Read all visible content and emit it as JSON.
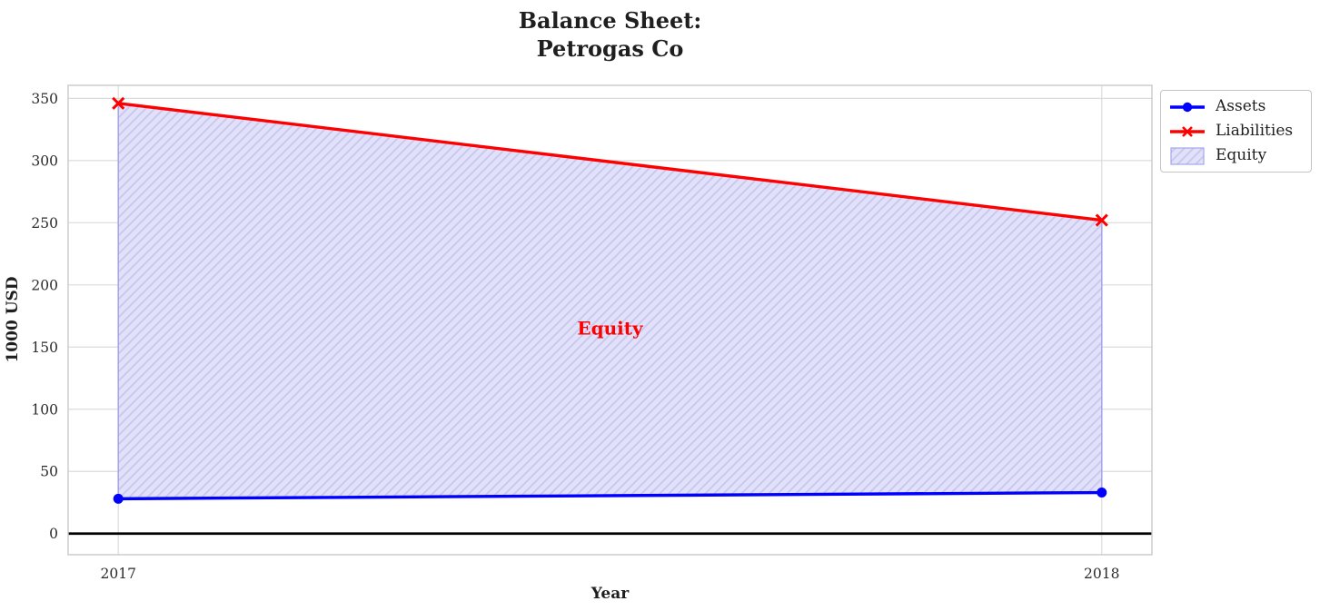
{
  "chart_data": {
    "type": "line",
    "title": "Balance Sheet:\nPetrogas Co",
    "xlabel": "Year",
    "ylabel": "1000 USD",
    "x": [
      2017,
      2018
    ],
    "series": [
      {
        "name": "Assets",
        "values": [
          28,
          33
        ],
        "color": "#0000ff",
        "marker": "circle"
      },
      {
        "name": "Liabilities",
        "values": [
          346,
          252
        ],
        "color": "#ff0000",
        "marker": "x"
      }
    ],
    "fill_between": {
      "label": "Equity",
      "between": [
        "Assets",
        "Liabilities"
      ],
      "face_color": "#e1e1f9",
      "hatch_color": "#c9c9f1",
      "edge_color": "#a5a5e8",
      "hatch_pattern": "///"
    },
    "annotation": {
      "text": "Equity",
      "x": 2017.5,
      "y": 165,
      "color": "#ff0000"
    },
    "xticks": [
      2017,
      2018
    ],
    "yticks": [
      0,
      50,
      100,
      150,
      200,
      250,
      300,
      350
    ],
    "xlim": [
      2016.949,
      2018.051
    ],
    "ylim": [
      -17,
      360.5
    ],
    "grid": true,
    "zero_line": true,
    "legend": {
      "location": "outside upper right"
    }
  }
}
